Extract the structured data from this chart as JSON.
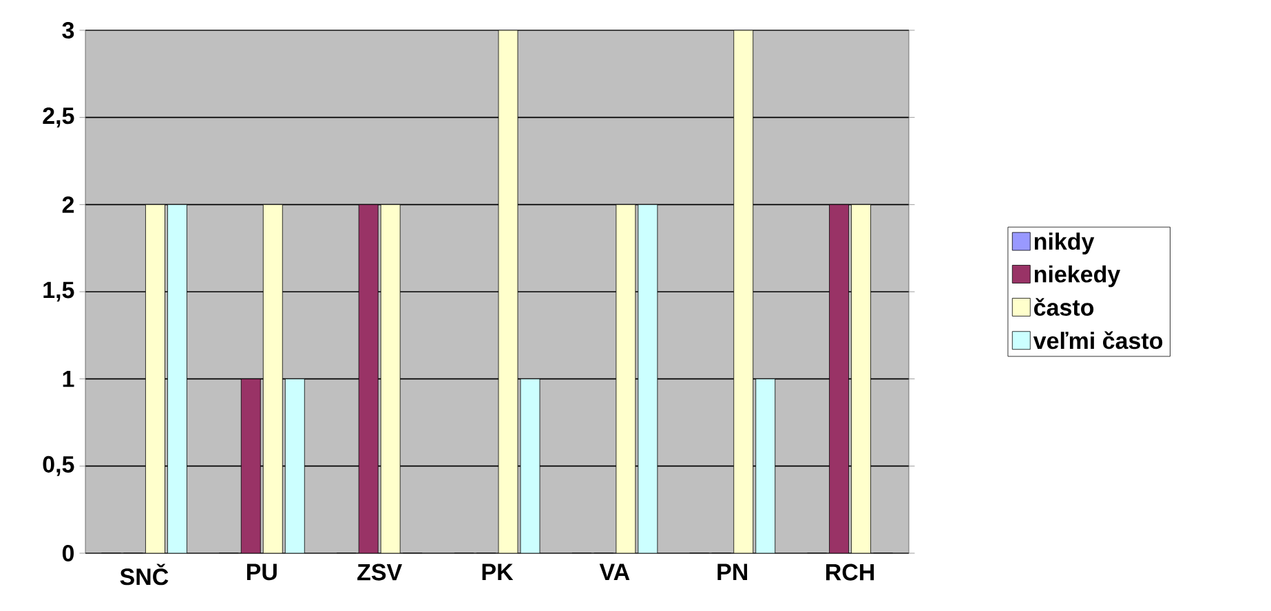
{
  "chart_data": {
    "type": "bar",
    "categories": [
      "SNČ",
      "PU",
      "ZSV",
      "PK",
      "VA",
      "PN",
      "RCH"
    ],
    "series": [
      {
        "name": "nikdy",
        "color": "#9999ff",
        "values": [
          0,
          0,
          0,
          0,
          0,
          0,
          0
        ]
      },
      {
        "name": "niekedy",
        "color": "#993366",
        "values": [
          0,
          1,
          2,
          0,
          0,
          0,
          2
        ]
      },
      {
        "name": "často",
        "color": "#ffffcc",
        "values": [
          2,
          2,
          2,
          3,
          2,
          3,
          2
        ]
      },
      {
        "name": "veľmi často",
        "color": "#ccffff",
        "values": [
          2,
          1,
          0,
          1,
          2,
          1,
          0
        ]
      }
    ],
    "ylim": [
      0,
      3
    ],
    "yticks": [
      {
        "value": 0,
        "label": "0"
      },
      {
        "value": 0.5,
        "label": "0,5"
      },
      {
        "value": 1,
        "label": "1"
      },
      {
        "value": 1.5,
        "label": "1,5"
      },
      {
        "value": 2,
        "label": "2"
      },
      {
        "value": 2.5,
        "label": "2,5"
      },
      {
        "value": 3,
        "label": "3"
      }
    ],
    "grid": "y",
    "legend": "right"
  }
}
